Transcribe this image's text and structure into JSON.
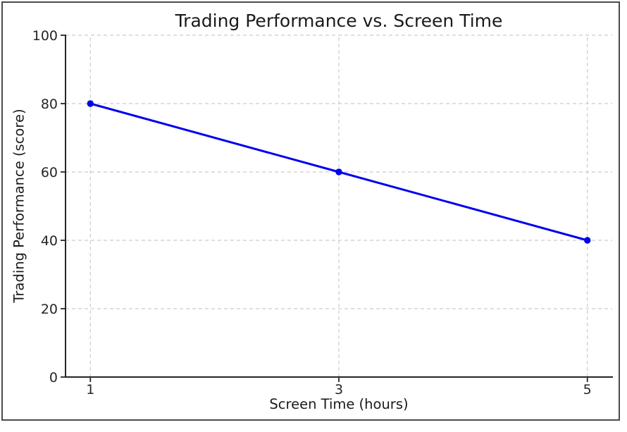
{
  "chart_data": {
    "type": "line",
    "title": "Trading Performance vs. Screen Time",
    "xlabel": "Screen Time (hours)",
    "ylabel": "Trading Performance (score)",
    "x": [
      1,
      3,
      5
    ],
    "y": [
      80,
      60,
      40
    ],
    "x_tick_labels": [
      "1",
      "3",
      "5"
    ],
    "x_tick_values": [
      1,
      3,
      5
    ],
    "y_tick_labels": [
      "0",
      "20",
      "40",
      "60",
      "80",
      "100"
    ],
    "y_tick_values": [
      0,
      20,
      40,
      60,
      80,
      100
    ],
    "xlim": [
      0.8,
      5.2
    ],
    "ylim": [
      0,
      100
    ],
    "grid": true,
    "grid_style": "dashed",
    "legend": "none",
    "line_color": "#0000ee",
    "marker_color": "#0000ee",
    "grid_color": "#cccccc",
    "spine_color": "#262626",
    "figure_border_color": "#4a4a4a"
  }
}
